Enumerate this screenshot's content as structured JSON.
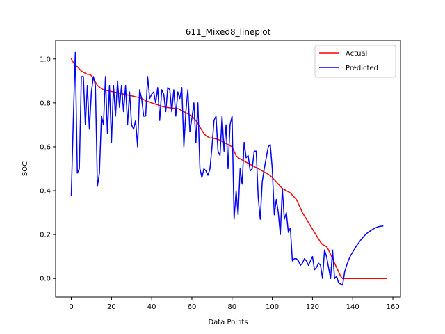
{
  "chart_data": {
    "type": "line",
    "title": "611_Mixed8_lineplot",
    "xlabel": "Data Points",
    "ylabel": "SOC",
    "xlim": [
      -7.8,
      163.8
    ],
    "ylim": [
      -0.085,
      1.085
    ],
    "xticks": [
      0,
      20,
      40,
      60,
      80,
      100,
      120,
      140,
      160
    ],
    "yticks": [
      0.0,
      0.2,
      0.4,
      0.6,
      0.8,
      1.0
    ],
    "xtick_labels": [
      "0",
      "20",
      "40",
      "60",
      "80",
      "100",
      "120",
      "140",
      "160"
    ],
    "ytick_labels": [
      "0.0",
      "0.2",
      "0.4",
      "0.6",
      "0.8",
      "1.0"
    ],
    "grid": false,
    "legend_position": "upper right",
    "series": [
      {
        "name": "Actual",
        "color": "#ff0000",
        "values": [
          1.0,
          0.985,
          0.97,
          0.965,
          0.955,
          0.945,
          0.94,
          0.935,
          0.93,
          0.93,
          0.925,
          0.91,
          0.895,
          0.88,
          0.872,
          0.865,
          0.86,
          0.858,
          0.856,
          0.854,
          0.852,
          0.85,
          0.848,
          0.846,
          0.844,
          0.842,
          0.84,
          0.838,
          0.836,
          0.834,
          0.832,
          0.83,
          0.828,
          0.826,
          0.824,
          0.82,
          0.815,
          0.81,
          0.807,
          0.804,
          0.8,
          0.797,
          0.794,
          0.791,
          0.788,
          0.785,
          0.782,
          0.78,
          0.779,
          0.778,
          0.777,
          0.776,
          0.775,
          0.774,
          0.77,
          0.765,
          0.76,
          0.755,
          0.75,
          0.745,
          0.74,
          0.73,
          0.72,
          0.705,
          0.69,
          0.675,
          0.66,
          0.65,
          0.645,
          0.64,
          0.64,
          0.638,
          0.636,
          0.634,
          0.63,
          0.625,
          0.62,
          0.615,
          0.61,
          0.605,
          0.6,
          0.58,
          0.56,
          0.55,
          0.545,
          0.54,
          0.535,
          0.53,
          0.525,
          0.52,
          0.515,
          0.51,
          0.505,
          0.5,
          0.495,
          0.49,
          0.485,
          0.48,
          0.475,
          0.468,
          0.46,
          0.45,
          0.44,
          0.43,
          0.42,
          0.41,
          0.405,
          0.4,
          0.395,
          0.39,
          0.38,
          0.37,
          0.36,
          0.34,
          0.32,
          0.3,
          0.285,
          0.27,
          0.255,
          0.24,
          0.225,
          0.21,
          0.195,
          0.18,
          0.165,
          0.155,
          0.15,
          0.145,
          0.13,
          0.11,
          0.09,
          0.07,
          0.05,
          0.03,
          0.01,
          0.0,
          0.0,
          0.0,
          0.0,
          0.0,
          0.0,
          0.0,
          0.0,
          0.0,
          0.0,
          0.0,
          0.0,
          0.0,
          0.0,
          0.0,
          0.0,
          0.0,
          0.0,
          0.0,
          0.0,
          0.0,
          0.0,
          0.0
        ]
      },
      {
        "name": "Predicted",
        "color": "#0000ff",
        "values": [
          0.38,
          0.72,
          1.03,
          0.48,
          0.5,
          0.92,
          0.92,
          0.7,
          0.88,
          0.68,
          0.85,
          0.92,
          0.88,
          0.42,
          0.48,
          0.74,
          0.7,
          0.92,
          0.66,
          0.88,
          0.62,
          0.88,
          0.74,
          0.9,
          0.78,
          0.88,
          0.76,
          0.88,
          0.7,
          0.85,
          0.7,
          0.68,
          0.72,
          0.6,
          0.86,
          0.82,
          0.74,
          0.74,
          0.92,
          0.82,
          0.84,
          0.85,
          0.8,
          0.87,
          0.72,
          0.86,
          0.84,
          0.76,
          0.87,
          0.86,
          0.76,
          0.86,
          0.74,
          0.85,
          0.82,
          0.87,
          0.6,
          0.76,
          0.86,
          0.67,
          0.73,
          0.8,
          0.62,
          0.8,
          0.5,
          0.46,
          0.5,
          0.49,
          0.47,
          0.5,
          0.6,
          0.72,
          0.74,
          0.58,
          0.56,
          0.74,
          0.58,
          0.7,
          0.5,
          0.7,
          0.74,
          0.27,
          0.4,
          0.29,
          0.5,
          0.43,
          0.62,
          0.55,
          0.56,
          0.49,
          0.5,
          0.58,
          0.58,
          0.37,
          0.27,
          0.44,
          0.5,
          0.55,
          0.6,
          0.61,
          0.5,
          0.29,
          0.36,
          0.3,
          0.2,
          0.41,
          0.27,
          0.3,
          0.21,
          0.23,
          0.08,
          0.09,
          0.09,
          0.08,
          0.06,
          0.07,
          0.09,
          0.08,
          0.06,
          0.08,
          0.1,
          0.04,
          0.05,
          0.07,
          0.06,
          0.0,
          0.13,
          0.1,
          0.05,
          0.0,
          0.13,
          0.0,
          0.01,
          -0.02,
          -0.025,
          -0.03,
          0.03,
          0.06,
          0.085,
          0.105,
          0.12,
          0.135,
          0.15,
          0.162,
          0.175,
          0.186,
          0.196,
          0.205,
          0.212,
          0.218,
          0.224,
          0.229,
          0.233,
          0.236,
          0.238,
          0.239
        ]
      }
    ]
  }
}
